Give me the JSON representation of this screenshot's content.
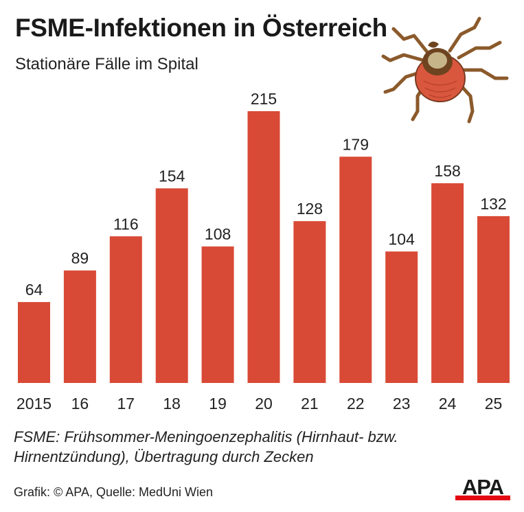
{
  "header": {
    "title": "FSME-Infektionen in Österreich",
    "subtitle": "Stationäre Fälle im Spital"
  },
  "footer": {
    "footnote_line1": "FSME: Frühsommer-Meningoenzephalitis (Hirnhaut- bzw.",
    "footnote_line2": "Hirnentzündung), Übertragung durch Zecken",
    "source": "Grafik: © APA, Quelle: MedUni Wien",
    "logo_text": "APA"
  },
  "colors": {
    "bar": "#d94a36",
    "logo_red": "#e30613",
    "text": "#1a1a1a"
  },
  "illustration": {
    "icon": "tick-icon"
  },
  "chart_data": {
    "type": "bar",
    "title": "FSME-Infektionen in Österreich",
    "subtitle": "Stationäre Fälle im Spital",
    "categories": [
      "2015",
      "16",
      "17",
      "18",
      "19",
      "20",
      "21",
      "22",
      "23",
      "24",
      "25"
    ],
    "values": [
      64,
      89,
      116,
      154,
      108,
      215,
      128,
      179,
      104,
      158,
      132
    ],
    "xlabel": "",
    "ylabel": "",
    "ylim": [
      0,
      215
    ],
    "grid": false,
    "data_labels": true
  }
}
